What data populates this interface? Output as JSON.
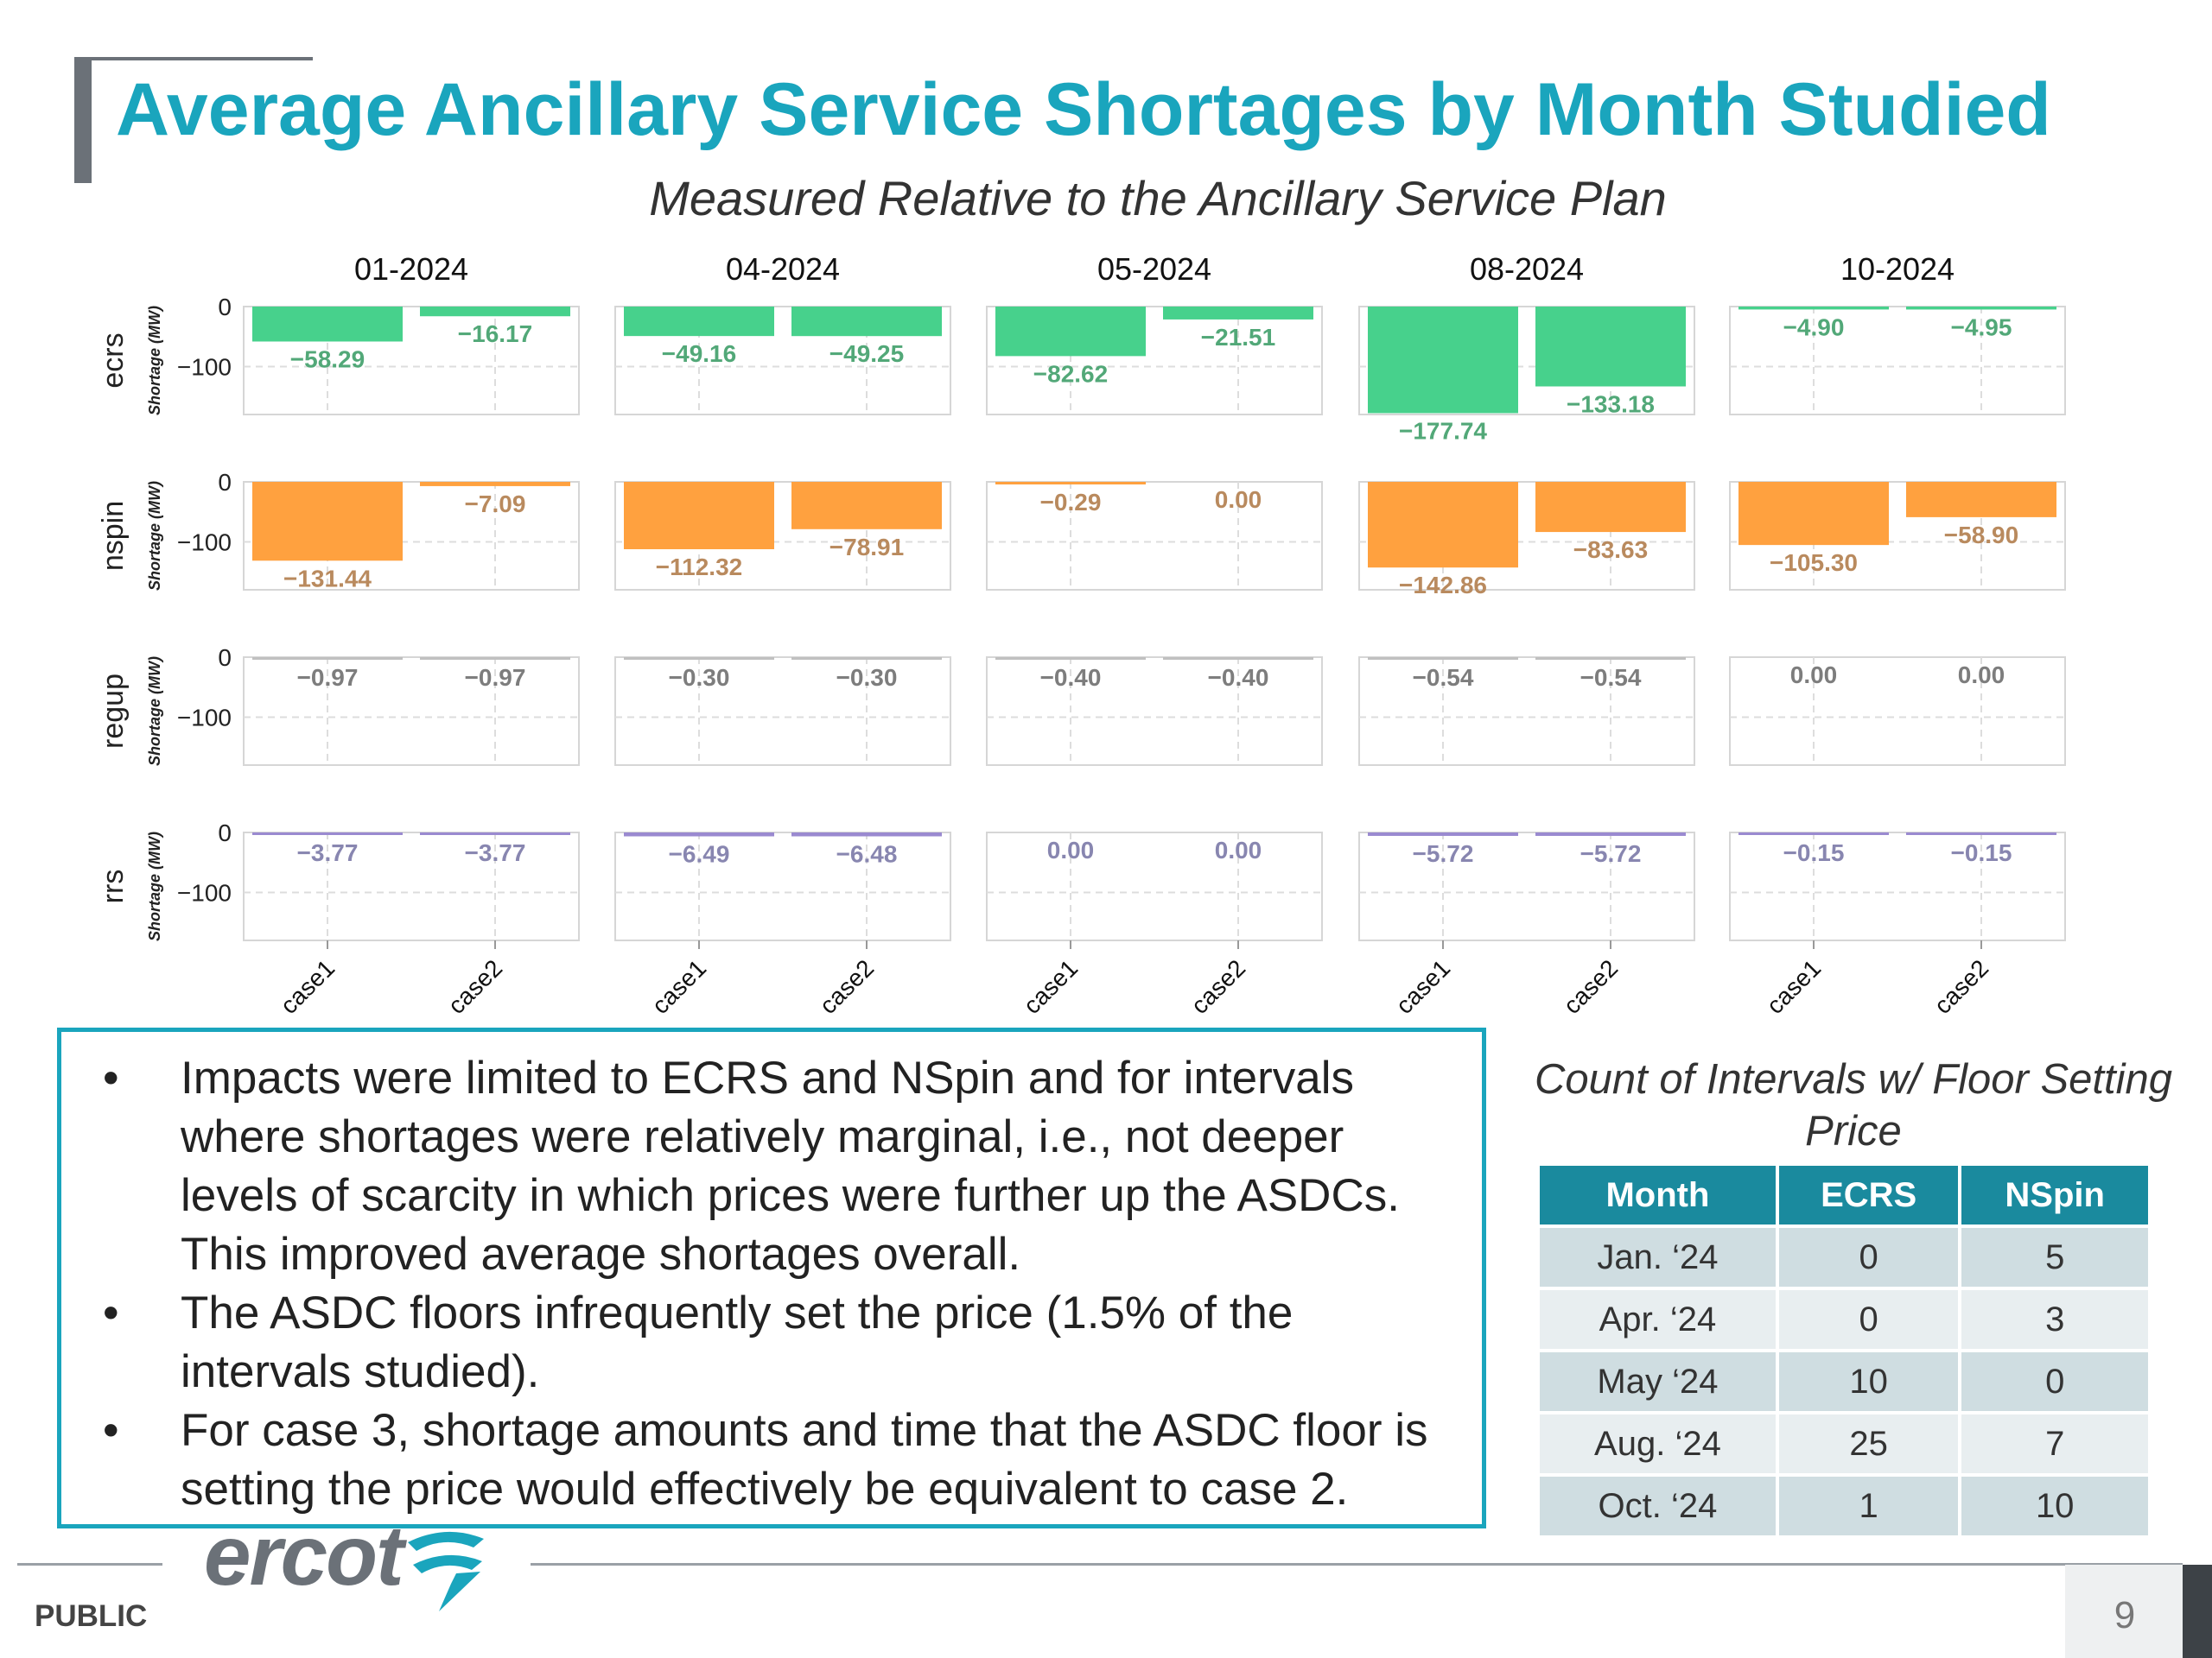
{
  "slide": {
    "title": "Average Ancillary Service Shortages by Month Studied",
    "page_number": "9",
    "classification": "PUBLIC",
    "logo_text": "ercot"
  },
  "chart_data": {
    "type": "bar",
    "subtitle": "Measured Relative to the Ancillary Service Plan",
    "columns": [
      "01-2024",
      "04-2024",
      "05-2024",
      "08-2024",
      "10-2024"
    ],
    "rows": [
      "ecrs",
      "nspin",
      "regup",
      "rrs"
    ],
    "categories": [
      "case1",
      "case2"
    ],
    "ylabel": "Shortage (MW)",
    "ylim": [
      -180,
      0
    ],
    "yticks": [
      0,
      -100
    ],
    "grid": true,
    "colors": {
      "ecrs": "#47d18c",
      "nspin": "#ffa13f",
      "regup": "#c0c0c0",
      "rrs": "#9a8ad0"
    },
    "label_colors": {
      "ecrs": "#52a878",
      "nspin": "#b98a5e",
      "regup": "#7d7d7d",
      "rrs": "#8886b0"
    },
    "values": {
      "ecrs": [
        [
          -58.29,
          -16.17
        ],
        [
          -49.16,
          -49.25
        ],
        [
          -82.62,
          -21.51
        ],
        [
          -177.74,
          -133.18
        ],
        [
          -4.9,
          -4.95
        ]
      ],
      "nspin": [
        [
          -131.44,
          -7.09
        ],
        [
          -112.32,
          -78.91
        ],
        [
          -0.29,
          0.0
        ],
        [
          -142.86,
          -83.63
        ],
        [
          -105.3,
          -58.9
        ]
      ],
      "regup": [
        [
          -0.97,
          -0.97
        ],
        [
          -0.3,
          -0.3
        ],
        [
          -0.4,
          -0.4
        ],
        [
          -0.54,
          -0.54
        ],
        [
          0.0,
          0.0
        ]
      ],
      "rrs": [
        [
          -3.77,
          -3.77
        ],
        [
          -6.49,
          -6.48
        ],
        [
          0.0,
          0.0
        ],
        [
          -5.72,
          -5.72
        ],
        [
          -0.15,
          -0.15
        ]
      ]
    }
  },
  "notes": [
    "Impacts were limited to ECRS and NSpin and for intervals where shortages were relatively marginal, i.e., not deeper levels of scarcity in which prices were further up the ASDCs. This improved average shortages overall.",
    "The ASDC floors infrequently set the price (1.5% of the intervals studied).",
    "For case 3, shortage amounts and time that the ASDC floor is setting the price would effectively be equivalent to case 2."
  ],
  "floor_table": {
    "title": "Count of Intervals w/ Floor Setting Price",
    "headers": [
      "Month",
      "ECRS",
      "NSpin"
    ],
    "rows": [
      [
        "Jan. ‘24",
        "0",
        "5"
      ],
      [
        "Apr. ‘24",
        "0",
        "3"
      ],
      [
        "May ‘24",
        "10",
        "0"
      ],
      [
        "Aug. ‘24",
        "25",
        "7"
      ],
      [
        "Oct. ‘24",
        "1",
        "10"
      ]
    ]
  }
}
